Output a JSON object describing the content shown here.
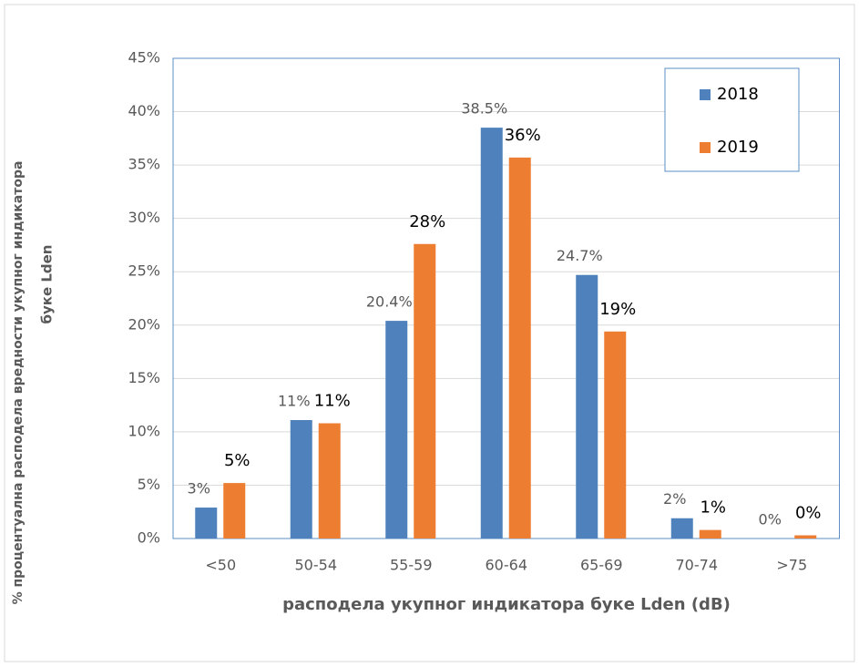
{
  "chart_data": {
    "type": "bar",
    "categories": [
      "<50",
      "50-54",
      "55-59",
      "60-64",
      "65-69",
      "70-74",
      ">75"
    ],
    "series": [
      {
        "name": "2018",
        "color": "#4f81bd",
        "values": [
          2.9,
          11.1,
          20.4,
          38.5,
          24.7,
          1.9,
          0
        ],
        "value_labels": [
          "3%",
          "11%",
          "20.4%",
          "38.5%",
          "24.7%",
          "2%",
          "0%"
        ]
      },
      {
        "name": "2019",
        "color": "#ed7d31",
        "values": [
          5.2,
          10.8,
          27.6,
          35.7,
          19.4,
          0.8,
          0.3
        ],
        "value_labels": [
          "5%",
          "11%",
          "28%",
          "36%",
          "19%",
          "1%",
          "0%"
        ]
      }
    ],
    "ylim": [
      0,
      45
    ],
    "yticks": [
      {
        "value": 0,
        "label": "0%"
      },
      {
        "value": 5,
        "label": "5%"
      },
      {
        "value": 10,
        "label": "10%"
      },
      {
        "value": 15,
        "label": "15%"
      },
      {
        "value": 20,
        "label": "20%"
      },
      {
        "value": 25,
        "label": "25%"
      },
      {
        "value": 30,
        "label": "30%"
      },
      {
        "value": 35,
        "label": "35%"
      },
      {
        "value": 40,
        "label": "40%"
      },
      {
        "value": 45,
        "label": "45%"
      }
    ],
    "grid": true,
    "legend": "top-right",
    "xlabel": "расподела укупног индикатора буке Lden (dB)",
    "ylabel": [
      "% процентуална расподела вредности  укупног индикатора",
      "буке  Lden"
    ]
  }
}
